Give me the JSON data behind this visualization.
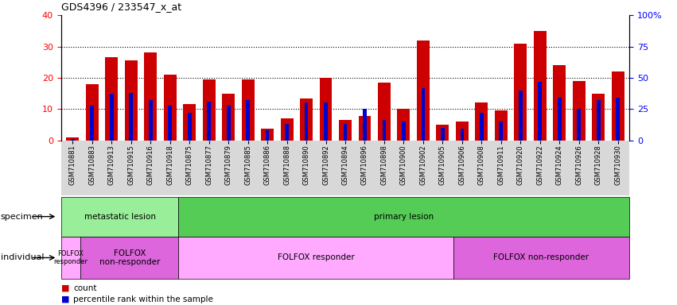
{
  "title": "GDS4396 / 233547_x_at",
  "samples": [
    "GSM710881",
    "GSM710883",
    "GSM710913",
    "GSM710915",
    "GSM710916",
    "GSM710918",
    "GSM710875",
    "GSM710877",
    "GSM710879",
    "GSM710885",
    "GSM710886",
    "GSM710888",
    "GSM710890",
    "GSM710892",
    "GSM710894",
    "GSM710896",
    "GSM710898",
    "GSM710900",
    "GSM710902",
    "GSM710905",
    "GSM710906",
    "GSM710908",
    "GSM710911",
    "GSM710920",
    "GSM710922",
    "GSM710924",
    "GSM710926",
    "GSM710928",
    "GSM710930"
  ],
  "count_values": [
    1,
    18,
    26.5,
    25.5,
    28,
    21,
    11.5,
    19.5,
    15,
    19.5,
    3.8,
    7,
    13.5,
    20,
    6.5,
    7.8,
    18.5,
    10,
    32,
    5,
    6,
    12,
    9.5,
    31,
    35,
    24,
    19,
    15,
    22
  ],
  "percentile_values": [
    1,
    28,
    37,
    38,
    32,
    28,
    22,
    31,
    28,
    32,
    8,
    13,
    30,
    30,
    13,
    25,
    16,
    15,
    42,
    10,
    9,
    22,
    15,
    40,
    47,
    34,
    25,
    32,
    34
  ],
  "ylim_left": [
    0,
    40
  ],
  "ylim_right": [
    0,
    100
  ],
  "yticks_left": [
    0,
    10,
    20,
    30,
    40
  ],
  "yticks_right": [
    0,
    25,
    50,
    75,
    100
  ],
  "bar_color_red": "#cc0000",
  "bar_color_blue": "#0000cc",
  "specimen_groups": [
    {
      "label": "metastatic lesion",
      "start": 0,
      "end": 6,
      "color": "#99ee99"
    },
    {
      "label": "primary lesion",
      "start": 6,
      "end": 29,
      "color": "#55cc55"
    }
  ],
  "individual_groups": [
    {
      "label": "FOLFOX\nresponder",
      "start": 0,
      "end": 1,
      "color": "#ffaaff"
    },
    {
      "label": "FOLFOX\nnon-responder",
      "start": 1,
      "end": 6,
      "color": "#dd66dd"
    },
    {
      "label": "FOLFOX responder",
      "start": 6,
      "end": 20,
      "color": "#ffaaff"
    },
    {
      "label": "FOLFOX non-responder",
      "start": 20,
      "end": 29,
      "color": "#dd66dd"
    }
  ],
  "legend_count_color": "#cc0000",
  "legend_percentile_color": "#0000cc",
  "specimen_label": "specimen",
  "individual_label": "individual"
}
